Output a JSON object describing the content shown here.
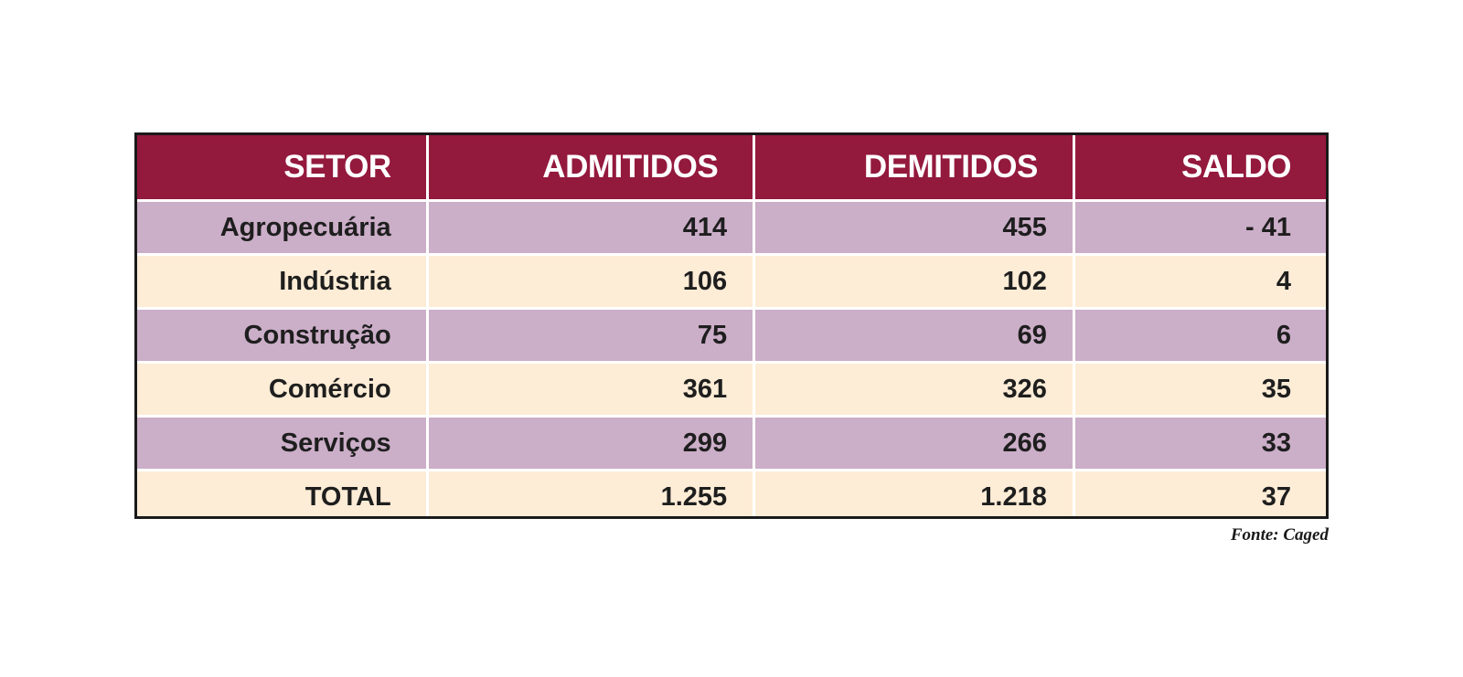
{
  "chart_data": {
    "type": "table",
    "columns": [
      "SETOR",
      "ADMITIDOS",
      "DEMITIDOS",
      "SALDO"
    ],
    "rows": [
      {
        "setor": "Agropecuária",
        "admitidos": "414",
        "demitidos": "455",
        "saldo": "- 41"
      },
      {
        "setor": "Indústria",
        "admitidos": "106",
        "demitidos": "102",
        "saldo": "4"
      },
      {
        "setor": "Construção",
        "admitidos": "75",
        "demitidos": "69",
        "saldo": "6"
      },
      {
        "setor": "Comércio",
        "admitidos": "361",
        "demitidos": "326",
        "saldo": "35"
      },
      {
        "setor": "Serviços",
        "admitidos": "299",
        "demitidos": "266",
        "saldo": "33"
      },
      {
        "setor": "TOTAL",
        "admitidos": "1.255",
        "demitidos": "1.218",
        "saldo": "37"
      }
    ],
    "source": "Fonte: Caged"
  },
  "colors": {
    "header_bg": "#93193d",
    "header_text": "#ffffff",
    "row_odd_bg": "#cbaec8",
    "row_even_bg": "#fdecd6",
    "border": "#1a1a1a"
  }
}
